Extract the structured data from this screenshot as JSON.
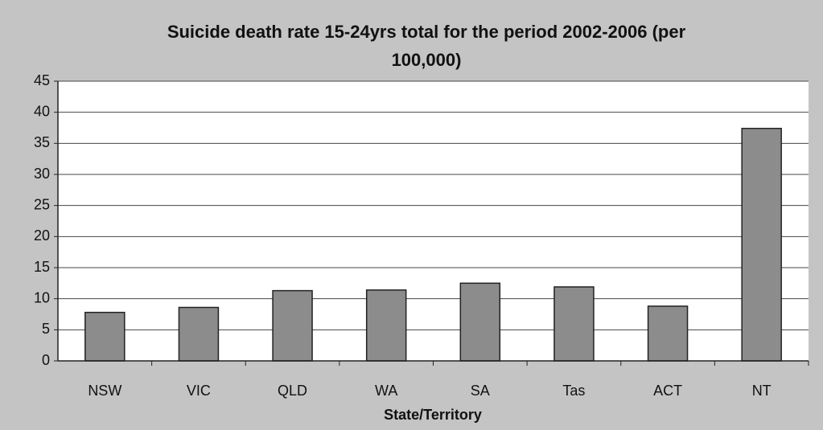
{
  "chart_data": {
    "type": "bar",
    "title": "Suicide death rate 15-24yrs total for the period 2002-2006 (per 100,000)",
    "x_label": "State/Territory",
    "categories": [
      "NSW",
      "VIC",
      "QLD",
      "WA",
      "SA",
      "Tas",
      "ACT",
      "NT"
    ],
    "values": [
      7.8,
      8.6,
      11.3,
      11.4,
      12.5,
      11.9,
      8.8,
      37.4
    ],
    "color": "#8c8c8c",
    "ylim": [
      0,
      45
    ],
    "yticks": [
      0,
      5,
      10,
      15,
      20,
      25,
      30,
      35,
      40,
      45
    ],
    "grid": true
  }
}
